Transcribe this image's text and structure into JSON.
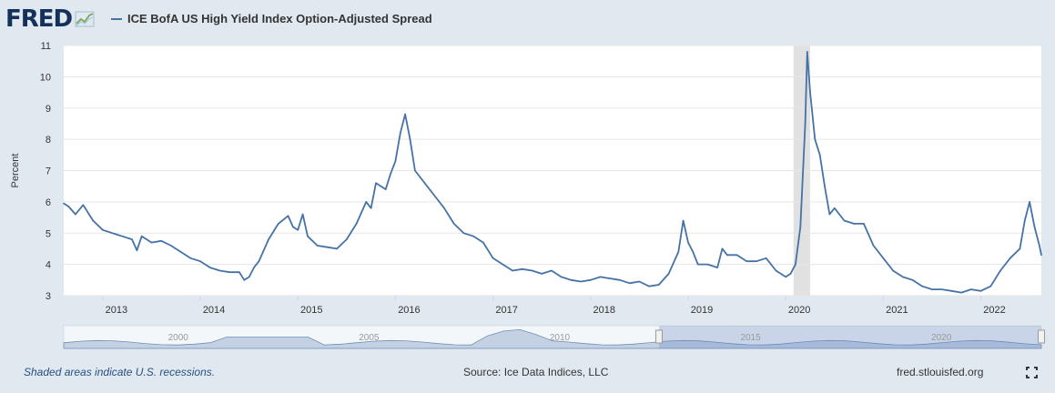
{
  "header": {
    "logo_text": "FRED",
    "series_title": "ICE BofA US High Yield Index Option-Adjusted Spread",
    "series_color": "#4572a7"
  },
  "icons": {
    "logo_icon": "chart-line-icon",
    "expand_icon": "fullscreen-expand-icon"
  },
  "footer": {
    "recession_note": "Shaded areas indicate U.S. recessions.",
    "source": "Source: Ice Data Indices, LLC",
    "site": "fred.stlouisfed.org"
  },
  "chart_data": {
    "type": "line",
    "ylabel": "Percent",
    "ylim": [
      3,
      11
    ],
    "yticks": [
      3,
      4,
      5,
      6,
      7,
      8,
      9,
      10,
      11
    ],
    "xlim": [
      2012.6,
      2022.62
    ],
    "xticks": [
      2013,
      2014,
      2015,
      2016,
      2017,
      2018,
      2019,
      2020,
      2021,
      2022
    ],
    "grid": true,
    "line_color": "#4572a7",
    "recession_shading": [
      [
        2020.08,
        2020.25
      ]
    ],
    "series": [
      {
        "x": [
          2012.6,
          2012.65,
          2012.72,
          2012.8,
          2012.9,
          2013.0,
          2013.1,
          2013.2,
          2013.3,
          2013.35,
          2013.4,
          2013.45,
          2013.5,
          2013.6,
          2013.7,
          2013.8,
          2013.9,
          2014.0,
          2014.1,
          2014.2,
          2014.3,
          2014.4,
          2014.45,
          2014.5,
          2014.55,
          2014.6,
          2014.7,
          2014.8,
          2014.9,
          2014.95,
          2015.0,
          2015.05,
          2015.1,
          2015.2,
          2015.3,
          2015.4,
          2015.5,
          2015.6,
          2015.7,
          2015.75,
          2015.8,
          2015.9,
          2015.95,
          2016.0,
          2016.05,
          2016.1,
          2016.15,
          2016.2,
          2016.3,
          2016.4,
          2016.5,
          2016.6,
          2016.7,
          2016.8,
          2016.9,
          2017.0,
          2017.1,
          2017.2,
          2017.3,
          2017.4,
          2017.5,
          2017.6,
          2017.7,
          2017.8,
          2017.9,
          2018.0,
          2018.1,
          2018.2,
          2018.3,
          2018.4,
          2018.5,
          2018.6,
          2018.7,
          2018.8,
          2018.9,
          2018.95,
          2019.0,
          2019.05,
          2019.1,
          2019.2,
          2019.3,
          2019.35,
          2019.4,
          2019.5,
          2019.6,
          2019.7,
          2019.8,
          2019.9,
          2020.0,
          2020.05,
          2020.1,
          2020.15,
          2020.2,
          2020.22,
          2020.25,
          2020.3,
          2020.35,
          2020.4,
          2020.45,
          2020.5,
          2020.6,
          2020.7,
          2020.8,
          2020.9,
          2021.0,
          2021.1,
          2021.2,
          2021.3,
          2021.4,
          2021.5,
          2021.6,
          2021.7,
          2021.8,
          2021.9,
          2022.0,
          2022.1,
          2022.2,
          2022.3,
          2022.4,
          2022.45,
          2022.5,
          2022.55,
          2022.6,
          2022.62
        ],
        "values": [
          5.95,
          5.85,
          5.6,
          5.9,
          5.4,
          5.1,
          5.0,
          4.9,
          4.8,
          4.45,
          4.9,
          4.8,
          4.7,
          4.75,
          4.6,
          4.4,
          4.2,
          4.1,
          3.9,
          3.8,
          3.75,
          3.75,
          3.5,
          3.6,
          3.9,
          4.1,
          4.8,
          5.3,
          5.55,
          5.2,
          5.1,
          5.6,
          4.9,
          4.6,
          4.55,
          4.5,
          4.8,
          5.3,
          6.0,
          5.8,
          6.6,
          6.4,
          6.9,
          7.3,
          8.2,
          8.8,
          8.0,
          7.0,
          6.6,
          6.2,
          5.8,
          5.3,
          5.0,
          4.9,
          4.7,
          4.2,
          4.0,
          3.8,
          3.85,
          3.8,
          3.7,
          3.8,
          3.6,
          3.5,
          3.45,
          3.5,
          3.6,
          3.55,
          3.5,
          3.4,
          3.45,
          3.3,
          3.35,
          3.7,
          4.4,
          5.4,
          4.7,
          4.4,
          4.0,
          4.0,
          3.9,
          4.5,
          4.3,
          4.3,
          4.1,
          4.1,
          4.2,
          3.8,
          3.6,
          3.7,
          4.0,
          5.2,
          8.5,
          10.8,
          9.5,
          8.0,
          7.5,
          6.5,
          5.6,
          5.8,
          5.4,
          5.3,
          5.3,
          4.6,
          4.2,
          3.8,
          3.6,
          3.5,
          3.3,
          3.2,
          3.2,
          3.15,
          3.1,
          3.2,
          3.15,
          3.3,
          3.8,
          4.2,
          4.5,
          5.4,
          6.0,
          5.2,
          4.6,
          4.3
        ]
      }
    ],
    "navigator": {
      "xticks": [
        2000,
        2005,
        2010,
        2015,
        2020
      ],
      "range": [
        1997,
        2022.62
      ],
      "selected": [
        2012.6,
        2022.62
      ]
    }
  }
}
